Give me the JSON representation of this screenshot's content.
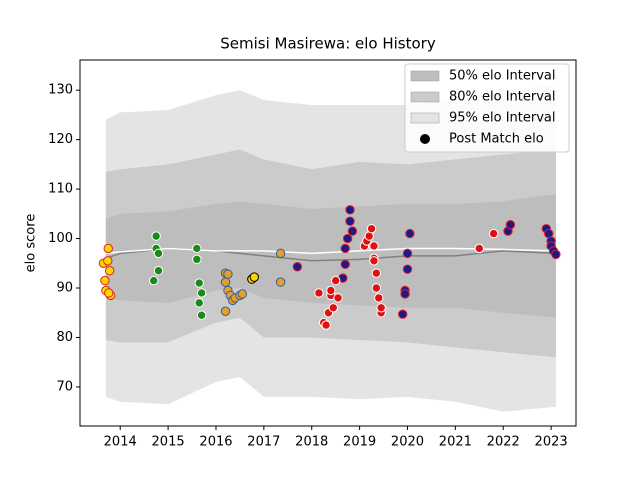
{
  "chart_data": {
    "type": "scatter",
    "title": "Semisi Masirewa: elo History",
    "ylabel": "elo score",
    "xlim": [
      2013.16,
      2023.52
    ],
    "ylim": [
      62.1,
      136.1
    ],
    "xticks": [
      2014,
      2015,
      2016,
      2017,
      2018,
      2019,
      2020,
      2021,
      2022,
      2023
    ],
    "yticks": [
      70,
      80,
      90,
      100,
      110,
      120,
      130
    ],
    "legend_loc": "upper right",
    "marker_legend": "Post Match elo",
    "band_x": [
      2013.7,
      2014,
      2015,
      2016,
      2016.5,
      2017,
      2018,
      2019,
      2020,
      2021,
      2022,
      2023.1
    ],
    "bands": [
      {
        "name": "50% elo Interval",
        "color": "#bdbdbd",
        "upper": [
          104,
          105,
          105.5,
          107,
          107.5,
          107,
          106,
          106.5,
          107,
          107,
          107.5,
          109
        ],
        "lower": [
          88,
          87.5,
          87,
          89.5,
          90,
          88,
          87,
          86.5,
          86,
          86,
          85,
          84
        ]
      },
      {
        "name": "80% elo Interval",
        "color": "#cbcbcb",
        "upper": [
          113.5,
          114,
          115,
          117,
          118,
          116,
          114,
          115.5,
          115,
          116,
          117,
          118
        ],
        "lower": [
          79.5,
          79,
          79,
          83,
          84,
          80,
          80,
          79.5,
          79,
          78,
          77,
          76
        ]
      },
      {
        "name": "95% elo Interval",
        "color": "#e4e4e4",
        "upper": [
          124,
          125.5,
          126,
          129,
          130,
          128,
          127,
          127,
          127,
          128,
          130,
          131
        ],
        "lower": [
          68,
          67,
          66.5,
          71,
          72,
          68,
          68,
          67.5,
          68,
          67,
          65,
          66
        ]
      }
    ],
    "lines": [
      {
        "color": "#808080",
        "values": [
          96,
          97,
          98,
          97.5,
          97,
          96.5,
          95.5,
          95.8,
          96.5,
          96.5,
          97.5,
          97
        ]
      },
      {
        "color": "#ffffff",
        "values": [
          97,
          97.3,
          98,
          97.5,
          97.5,
          97.5,
          97,
          97.5,
          98,
          98,
          97.8,
          97.5
        ]
      }
    ],
    "series": [
      {
        "fill": "#ffd700",
        "edge": "#e02020",
        "x": [
          2013.65,
          2013.68,
          2013.7,
          2013.75,
          2013.74,
          2013.78,
          2013.8,
          2013.76
        ],
        "values": [
          95,
          91.5,
          89.5,
          98,
          95.5,
          93.5,
          88.5,
          89
        ]
      },
      {
        "fill": "#1a8a1a",
        "edge": "#ffffff",
        "x": [
          2014.75,
          2014.75,
          2014.8,
          2014.7,
          2014.8,
          2015.6,
          2015.6,
          2015.65,
          2015.7,
          2015.65,
          2015.7
        ],
        "values": [
          100.5,
          98,
          97,
          91.5,
          93.5,
          98,
          95.8,
          91,
          89,
          87,
          84.5
        ]
      },
      {
        "fill": "#e69f2a",
        "edge": "#3060a0",
        "x": [
          2016.2,
          2016.25,
          2016.2,
          2016.25,
          2016.3,
          2016.35,
          2016.4,
          2016.5,
          2016.55,
          2016.2,
          2017.35,
          2017.35
        ],
        "values": [
          93,
          92.8,
          91.2,
          89.5,
          88.5,
          87.5,
          88,
          88.5,
          88.8,
          85.3,
          97,
          91.2
        ]
      },
      {
        "fill": "#ffd700",
        "edge": "#000000",
        "x": [
          2016.75,
          2016.8
        ],
        "values": [
          91.8,
          92.2
        ]
      },
      {
        "fill": "#1a1a8c",
        "edge": "#e02020",
        "x": [
          2017.7,
          2018.7,
          2018.75,
          2018.8,
          2018.8,
          2018.85,
          2018.65,
          2018.7,
          2019.9,
          2019.95,
          2019.95,
          2020,
          2020,
          2020.05,
          2022.1,
          2022.15,
          2022.9,
          2022.95,
          2023,
          2023,
          2023.05,
          2023.1
        ],
        "values": [
          94.3,
          98,
          100,
          103.5,
          105.8,
          101.5,
          92,
          94.8,
          84.7,
          89.5,
          88.8,
          93.8,
          97,
          101,
          101.5,
          102.8,
          102,
          101,
          99.5,
          98.5,
          97.5,
          96.8
        ]
      },
      {
        "fill": "#e01010",
        "edge": "#ffffff",
        "x": [
          2018.15,
          2018.25,
          2018.3,
          2018.35,
          2018.4,
          2018.45,
          2018.4,
          2018.5,
          2018.55,
          2019.1,
          2019.15,
          2019.2,
          2019.25,
          2019.3,
          2019.3,
          2019.3,
          2019.35,
          2019.35,
          2019.4,
          2019.45,
          2019.45,
          2021.5,
          2021.8
        ],
        "values": [
          89,
          83,
          82.5,
          85,
          88.5,
          86,
          89.5,
          91.5,
          88,
          98.5,
          99.5,
          100.5,
          102,
          98.5,
          96,
          95.5,
          93,
          90,
          88,
          85,
          86,
          98,
          101
        ]
      }
    ]
  }
}
